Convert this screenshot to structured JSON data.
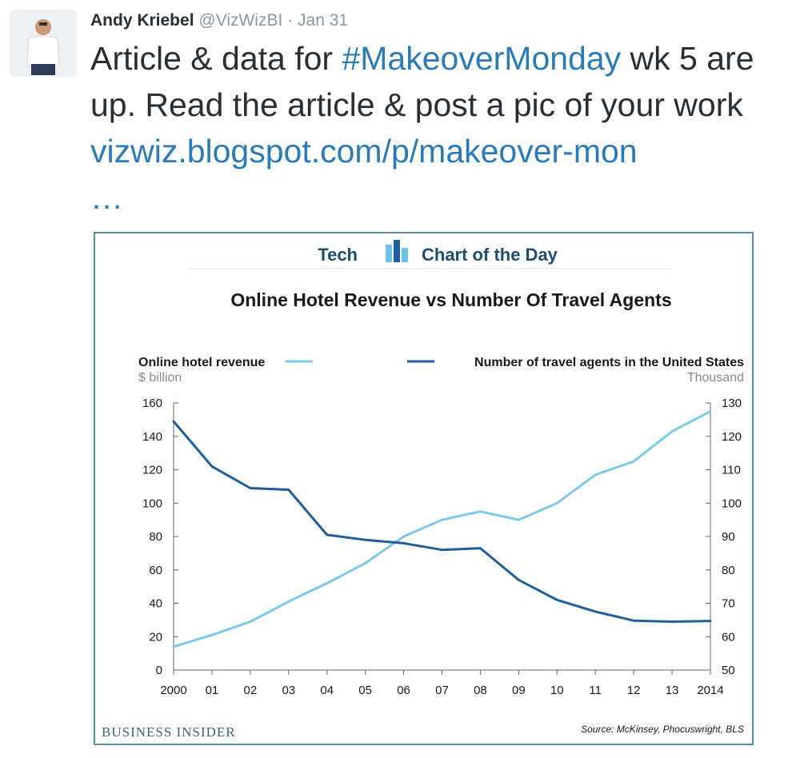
{
  "tweet": {
    "author_name": "Andy Kriebel",
    "handle": "@VizWizBI",
    "separator": "·",
    "date": "Jan 31",
    "text_before_hashtag": "Article & data for ",
    "hashtag": "#MakeoverMonday",
    "text_after_hashtag": " wk 5 are up. Read the article & post a pic of your work ",
    "link": "vizwiz.blogspot.com/p/makeover-mon",
    "link_ellipsis": "…"
  },
  "card": {
    "badge_left": "Tech",
    "badge_right": "Chart of the Day",
    "brand": "BUSINESS INSIDER",
    "source": "Source: McKinsey, Phocuswright, BLS"
  },
  "colors": {
    "revenue_line": "#7cc9ec",
    "agents_line": "#1f5f9e",
    "card_border": "#5a8ea6",
    "link": "#2b7bb9"
  },
  "chart_data": {
    "type": "line",
    "title": "Online Hotel Revenue vs Number Of Travel Agents",
    "x": [
      "2000",
      "01",
      "02",
      "03",
      "04",
      "05",
      "06",
      "07",
      "08",
      "09",
      "10",
      "11",
      "12",
      "13",
      "2014"
    ],
    "series": [
      {
        "name": "Online hotel revenue",
        "unit": "$ billion",
        "axis": "left",
        "color": "#7cc9ec",
        "values": [
          14,
          21,
          29,
          41,
          52,
          64,
          80,
          90,
          95,
          90,
          100,
          117,
          125,
          143,
          155
        ]
      },
      {
        "name": "Number of travel agents in the United States",
        "unit": "Thousand",
        "axis": "right",
        "color": "#1f5f9e",
        "values": [
          124.5,
          111,
          104.5,
          104,
          90.5,
          89,
          88,
          86,
          86.5,
          77,
          71,
          67.5,
          64.8,
          64.5,
          64.7
        ]
      }
    ],
    "y_left": {
      "range": [
        0,
        160
      ],
      "ticks": [
        0,
        20,
        40,
        60,
        80,
        100,
        120,
        140,
        160
      ]
    },
    "y_right": {
      "range": [
        50,
        130
      ],
      "ticks": [
        50,
        60,
        70,
        80,
        90,
        100,
        110,
        120,
        130
      ]
    },
    "grid": false,
    "legend": "top"
  }
}
